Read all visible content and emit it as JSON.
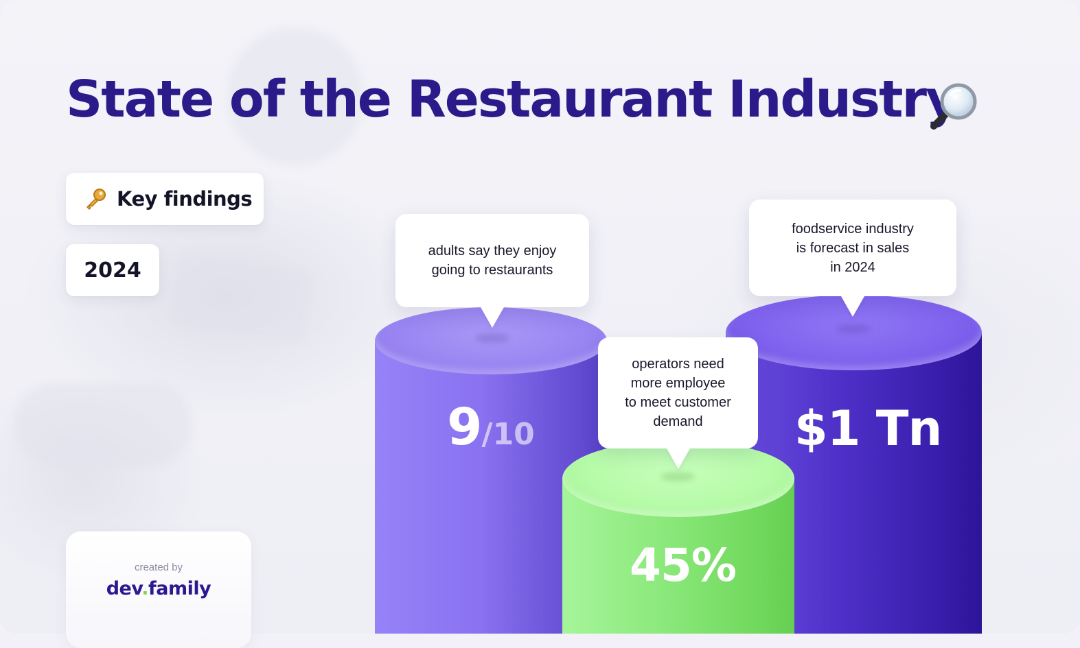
{
  "title": "State of the Restaurant Industry",
  "title_icon": "magnifier-icon",
  "chips": {
    "key_findings": {
      "icon": "key-icon",
      "label": "Key findings"
    },
    "year": "2024"
  },
  "credit": {
    "created_by": "created by",
    "brand_part1": "dev",
    "brand_dot": ".",
    "brand_part2": "family"
  },
  "stats": [
    {
      "value_main": "9",
      "value_suffix": "/10",
      "description": "adults say they enjoy\ngoing to restaurants",
      "color": "#8a72f0"
    },
    {
      "value_main": "45%",
      "description": "operators need\nmore employee\nto meet customer\ndemand",
      "color": "#8ae87a"
    },
    {
      "value_main": "$1 Tn",
      "description": "foodservice industry\nis forecast in sales\nin 2024",
      "color": "#4e30c8"
    }
  ],
  "colors": {
    "title": "#2a1a8a",
    "background": "#f1f1f7",
    "brand_accent": "#7dd65a"
  }
}
